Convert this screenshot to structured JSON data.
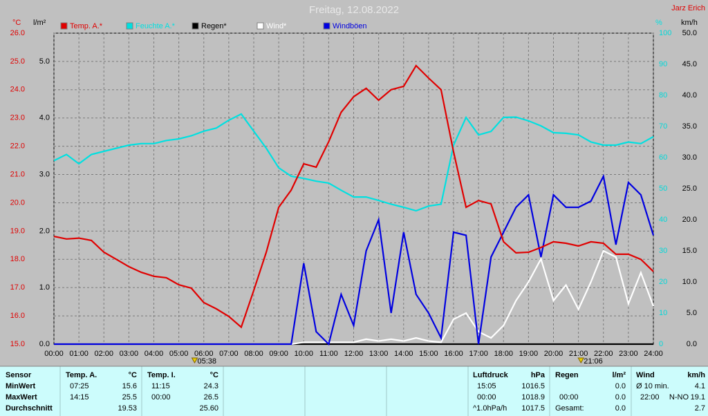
{
  "chart_data": {
    "type": "line",
    "title": "Freitag, 12.08.2022",
    "author": "Jarz Erich",
    "ylabel": "°C",
    "y2label": "l/m²",
    "y3label": "%",
    "y4label": "km/h",
    "x": [
      "00:00",
      "00:30",
      "01:00",
      "01:30",
      "02:00",
      "02:30",
      "03:00",
      "03:30",
      "04:00",
      "04:30",
      "05:00",
      "05:30",
      "06:00",
      "06:30",
      "07:00",
      "07:30",
      "08:00",
      "08:30",
      "09:00",
      "09:30",
      "10:00",
      "10:30",
      "11:00",
      "11:30",
      "12:00",
      "12:30",
      "13:00",
      "13:30",
      "14:00",
      "14:30",
      "15:00",
      "15:30",
      "16:00",
      "16:30",
      "17:00",
      "17:30",
      "18:00",
      "18:30",
      "19:00",
      "19:30",
      "20:00",
      "20:30",
      "21:00",
      "21:30",
      "22:00",
      "22:30",
      "23:00",
      "23:30",
      "24:00"
    ],
    "xticks": [
      "00:00",
      "01:00",
      "02:00",
      "03:00",
      "04:00",
      "05:00",
      "06:00",
      "07:00",
      "08:00",
      "09:00",
      "10:00",
      "11:00",
      "12:00",
      "13:00",
      "14:00",
      "15:00",
      "16:00",
      "17:00",
      "18:00",
      "19:00",
      "20:00",
      "21:00",
      "22:00",
      "23:00",
      "24:00"
    ],
    "sunrise": "05:38",
    "sunset": "21:06",
    "ylim": [
      15,
      26
    ],
    "yticks": [
      {
        "value": 15,
        "label": "15.0"
      },
      {
        "value": 16,
        "label": "16.0"
      },
      {
        "value": 17,
        "label": "17.0"
      },
      {
        "value": 18,
        "label": "18.0"
      },
      {
        "value": 19,
        "label": "19.0"
      },
      {
        "value": 20,
        "label": "20.0"
      },
      {
        "value": 21,
        "label": "21.0"
      },
      {
        "value": 22,
        "label": "22.0"
      },
      {
        "value": 23,
        "label": "23.0"
      },
      {
        "value": 24,
        "label": "24.0"
      },
      {
        "value": 25,
        "label": "25.0"
      },
      {
        "value": 26,
        "label": "26.0"
      }
    ],
    "y2lim": [
      0,
      5.5
    ],
    "y2ticks": [
      {
        "value": 0,
        "label": "0.0"
      },
      {
        "value": 1,
        "label": "1.0"
      },
      {
        "value": 2,
        "label": "2.0"
      },
      {
        "value": 3,
        "label": "3.0"
      },
      {
        "value": 4,
        "label": "4.0"
      },
      {
        "value": 5,
        "label": "5.0"
      }
    ],
    "y3lim": [
      0,
      100
    ],
    "y3ticks": [
      0,
      10,
      20,
      30,
      40,
      50,
      60,
      70,
      80,
      90,
      100
    ],
    "y4lim": [
      0,
      50
    ],
    "y4ticks": [
      {
        "value": 0,
        "label": "0.0"
      },
      {
        "value": 5,
        "label": "5.0"
      },
      {
        "value": 10,
        "label": "10.0"
      },
      {
        "value": 15,
        "label": "15.0"
      },
      {
        "value": 20,
        "label": "20.0"
      },
      {
        "value": 25,
        "label": "25.0"
      },
      {
        "value": 30,
        "label": "30.0"
      },
      {
        "value": 35,
        "label": "35.0"
      },
      {
        "value": 40,
        "label": "40.0"
      },
      {
        "value": 45,
        "label": "45.0"
      },
      {
        "value": 50,
        "label": "50.0"
      }
    ],
    "grid": true,
    "series": [
      {
        "name": "Temp. A.*",
        "color": "#e00000",
        "axis": "y",
        "values": [
          18.81,
          18.72,
          18.75,
          18.67,
          18.25,
          18.0,
          17.74,
          17.54,
          17.4,
          17.35,
          17.1,
          16.98,
          16.47,
          16.25,
          15.98,
          15.6,
          16.9,
          18.25,
          19.84,
          20.45,
          21.38,
          21.26,
          22.16,
          23.2,
          23.75,
          24.05,
          23.63,
          24.0,
          24.12,
          24.85,
          24.41,
          24.0,
          21.8,
          19.84,
          20.08,
          19.96,
          18.62,
          18.23,
          18.25,
          18.42,
          18.62,
          18.57,
          18.47,
          18.62,
          18.57,
          18.18,
          18.18,
          18.0,
          17.57
        ]
      },
      {
        "name": "Feuchte A.*",
        "color": "#00e0e0",
        "axis": "y3",
        "values": [
          59,
          61,
          58,
          61,
          62,
          63,
          64,
          64.5,
          64.5,
          65.5,
          66,
          67,
          68.5,
          69.5,
          72,
          74,
          68.5,
          63,
          56.7,
          54,
          53.3,
          52.4,
          51.8,
          49.5,
          47.3,
          47.3,
          46.2,
          45,
          44,
          42.9,
          44.4,
          45,
          64,
          72.9,
          67.3,
          68.4,
          72.9,
          73,
          71.8,
          70.2,
          68,
          67.8,
          67.3,
          65,
          64,
          64,
          65,
          64.5,
          66.7
        ]
      },
      {
        "name": "Regen*",
        "color": "#000000",
        "axis": "y2",
        "values": [
          0,
          0,
          0,
          0,
          0,
          0,
          0,
          0,
          0,
          0,
          0,
          0,
          0,
          0,
          0,
          0,
          0,
          0,
          0,
          0,
          0,
          0,
          0,
          0,
          0,
          0,
          0,
          0,
          0,
          0,
          0,
          0,
          0,
          0,
          0,
          0,
          0,
          0,
          0,
          0,
          0,
          0,
          0,
          0,
          0,
          0,
          0,
          0,
          0
        ]
      },
      {
        "name": "Wind*",
        "color": "#ffffff",
        "axis": "y4",
        "values": [
          0,
          0,
          0,
          0,
          0,
          0,
          0,
          0,
          0,
          0,
          0,
          0,
          0,
          0,
          0,
          0,
          0,
          0,
          0,
          0,
          0.3,
          0.3,
          0.3,
          0.3,
          0.3,
          0.8,
          0.5,
          0.8,
          0.5,
          1.0,
          0.5,
          0.3,
          4.0,
          5.0,
          2.0,
          1.0,
          3.0,
          7.0,
          10.0,
          13.7,
          7.0,
          9.5,
          5.6,
          10.0,
          15.0,
          14.0,
          6.5,
          11.5,
          6.1
        ]
      },
      {
        "name": "Windböen",
        "color": "#0000e0",
        "axis": "y4",
        "values": [
          0,
          0,
          0,
          0,
          0,
          0,
          0,
          0,
          0,
          0,
          0,
          0,
          0,
          0,
          0,
          0,
          0,
          0,
          0,
          0,
          13.0,
          2.0,
          0,
          8.0,
          3.0,
          15.0,
          20.0,
          5.0,
          18.0,
          8.0,
          5.0,
          1.0,
          18.0,
          17.5,
          0,
          14.0,
          18.0,
          22.0,
          24.0,
          14.0,
          24.0,
          22.0,
          22.0,
          23.0,
          27.0,
          16.0,
          26.0,
          24.0,
          17.5
        ]
      }
    ]
  },
  "stats": {
    "sensor_header": "Sensor",
    "row_labels": [
      "MinWert",
      "MaxWert",
      "Durchschnitt"
    ],
    "blocks": [
      {
        "header": [
          "Temp. A.",
          "°C"
        ],
        "rows": [
          [
            "07:25",
            "15.6"
          ],
          [
            "14:15",
            "25.5"
          ],
          [
            null,
            "19.53"
          ]
        ]
      },
      {
        "header": [
          "Temp. I.",
          "°C"
        ],
        "rows": [
          [
            "11:15",
            "24.3"
          ],
          [
            "00:00",
            "26.5"
          ],
          [
            null,
            "25.60"
          ]
        ]
      },
      {
        "header": [
          "Luftdruck",
          "hPa"
        ],
        "rows": [
          [
            "15:05",
            "1016.5"
          ],
          [
            "00:00",
            "1018.9"
          ],
          [
            "^1.0hPa/h",
            "1017.5"
          ]
        ]
      },
      {
        "header": [
          "Regen",
          "l/m²"
        ],
        "rows": [
          [
            null,
            "0.0"
          ],
          [
            "00:00",
            "0.0"
          ],
          [
            "Gesamt:",
            "0.0"
          ]
        ]
      },
      {
        "header": [
          "Wind",
          "km/h"
        ],
        "rows": [
          [
            "Ø 10 min.",
            null,
            "4.1"
          ],
          [
            "22:00",
            "N-NO",
            "19.1"
          ],
          [
            null,
            null,
            "2.7"
          ]
        ]
      }
    ]
  }
}
